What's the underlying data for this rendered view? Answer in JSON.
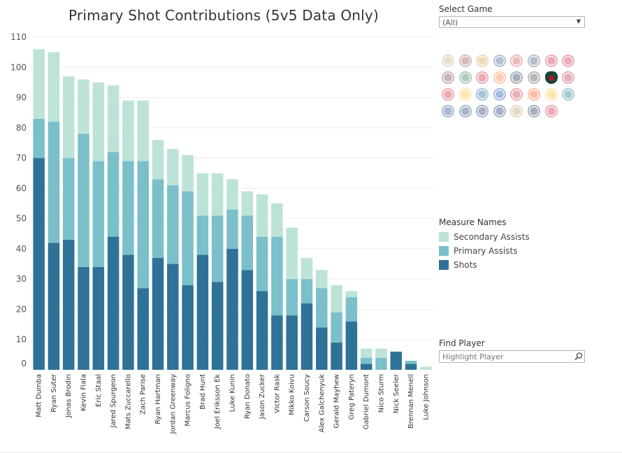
{
  "filters": {
    "select_game_label": "Select Game",
    "select_game_value": "(All)",
    "find_player_label": "Find Player",
    "find_player_placeholder": "Highlight Player"
  },
  "legend": {
    "title": "Measure Names",
    "items": [
      {
        "label": "Secondary Assists",
        "color": "#bde3d8"
      },
      {
        "label": "Primary Assists",
        "color": "#7bbfca"
      },
      {
        "label": "Shots",
        "color": "#2f7297"
      }
    ]
  },
  "team_logos": {
    "names": [
      "ducks-logo",
      "coyotes-logo",
      "bruins-logo",
      "sabres-logo",
      "flames-logo",
      "hurricanes-logo",
      "blackhawks-logo",
      "blackhawks-alt-logo",
      "avalanche-logo",
      "stars-logo",
      "red-wings-logo",
      "oilers-logo",
      "panthers-logo",
      "kings-logo",
      "wild-logo",
      "canadiens-logo",
      "devils-logo",
      "predators-logo",
      "islanders-logo",
      "rangers-logo",
      "senators-logo",
      "flyers-logo",
      "penguins-logo",
      "sharks-logo",
      "blues-logo",
      "lightning-logo",
      "maple-leafs-logo",
      "canucks-logo",
      "golden-knights-logo",
      "jets-logo",
      "capitals-logo"
    ],
    "active": "wild-logo"
  },
  "chart_data": {
    "type": "bar",
    "stacked": true,
    "title": "Primary Shot Contributions (5v5 Data Only)",
    "xlabel": "",
    "ylabel": "",
    "ylim": [
      0,
      110
    ],
    "yticks": [
      0,
      10,
      20,
      30,
      40,
      50,
      60,
      70,
      80,
      90,
      100,
      110
    ],
    "grid": true,
    "legend_position": "right",
    "categories": [
      "Matt Dumba",
      "Ryan Suter",
      "Jonas Brodin",
      "Kevin Fiala",
      "Eric Staal",
      "Jared Spurgeon",
      "Mats Zuccarello",
      "Zach Parise",
      "Ryan Hartman",
      "Jordan Greenway",
      "Marcus Foligno",
      "Brad Hunt",
      "Joel Eriksson Ek",
      "Luke Kunin",
      "Ryan Donato",
      "Jason Zucker",
      "Victor Rask",
      "Mikko Koivu",
      "Carson Soucy",
      "Alex Galchenyuk",
      "Gerald Mayhew",
      "Greg Pateryn",
      "Gabriel Dumont",
      "Nico Sturm",
      "Nick Seeler",
      "Brennan Menell",
      "Luke Johnson"
    ],
    "series": [
      {
        "name": "Shots",
        "color": "#2f7297",
        "values": [
          70,
          42,
          43,
          34,
          34,
          44,
          38,
          27,
          37,
          35,
          28,
          38,
          29,
          40,
          33,
          26,
          18,
          18,
          22,
          14,
          9,
          16,
          2,
          0,
          6,
          2,
          0
        ]
      },
      {
        "name": "Primary Assists",
        "color": "#7bbfca",
        "values": [
          13,
          40,
          27,
          44,
          35,
          28,
          31,
          42,
          26,
          26,
          31,
          13,
          22,
          13,
          18,
          18,
          26,
          12,
          8,
          13,
          10,
          8,
          2,
          4,
          0,
          1,
          0
        ]
      },
      {
        "name": "Secondary Assists",
        "color": "#bde3d8",
        "values": [
          23,
          23,
          27,
          18,
          26,
          22,
          20,
          20,
          13,
          12,
          12,
          14,
          14,
          10,
          8,
          14,
          11,
          17,
          7,
          6,
          9,
          2,
          3,
          3,
          0,
          0,
          1
        ]
      }
    ]
  }
}
